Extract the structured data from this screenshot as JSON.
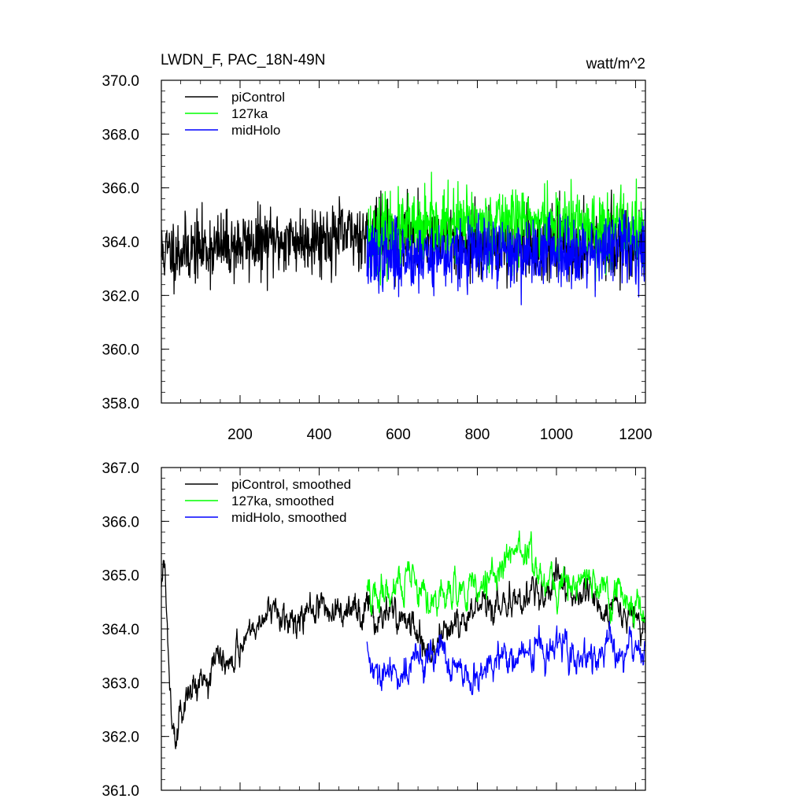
{
  "chart_data": [
    {
      "type": "line",
      "title": "LWDN_F, PAC_18N-49N",
      "units": "watt/m^2",
      "xlabel": "",
      "ylabel": "",
      "xlim": [
        1,
        1225
      ],
      "ylim": [
        358.0,
        370.0
      ],
      "xticks": [
        200,
        400,
        600,
        800,
        1000,
        1200
      ],
      "xtick_labels": [
        "200",
        "400",
        "600",
        "800",
        "1000",
        "1200"
      ],
      "yticks": [
        358.0,
        360.0,
        362.0,
        364.0,
        366.0,
        368.0,
        370.0
      ],
      "ytick_labels": [
        "358.0",
        "360.0",
        "362.0",
        "364.0",
        "366.0",
        "368.0",
        "370.0"
      ],
      "legend_position": "top-left",
      "series": [
        {
          "name": "piControl",
          "color": "#000000",
          "x_start": 1,
          "x_end": 1225,
          "base": 363.9,
          "noise": 1.05,
          "seed": 11,
          "trend": [
            [
              1,
              363.6
            ],
            [
              300,
              364.0
            ],
            [
              520,
              364.3
            ],
            [
              900,
              363.9
            ],
            [
              1225,
              364.0
            ]
          ]
        },
        {
          "name": "127ka",
          "color": "#00ff00",
          "x_start": 521,
          "x_end": 1225,
          "base": 364.4,
          "noise": 1.15,
          "seed": 23,
          "trend": [
            [
              521,
              364.2
            ],
            [
              900,
              364.8
            ],
            [
              1225,
              364.4
            ]
          ]
        },
        {
          "name": "midHolo",
          "color": "#0000ff",
          "x_start": 521,
          "x_end": 1225,
          "base": 363.6,
          "noise": 1.05,
          "seed": 37,
          "trend": [
            [
              521,
              363.4
            ],
            [
              900,
              363.6
            ],
            [
              1225,
              363.8
            ]
          ]
        }
      ]
    },
    {
      "type": "line",
      "title": "",
      "xlabel": "",
      "ylabel": "",
      "xlim": [
        1,
        1225
      ],
      "ylim": [
        361.0,
        367.0
      ],
      "xticks": [
        200,
        400,
        600,
        800,
        1000,
        1200
      ],
      "xtick_labels": [],
      "yticks": [
        361.0,
        362.0,
        363.0,
        364.0,
        365.0,
        366.0,
        367.0
      ],
      "ytick_labels": [
        "361.0",
        "362.0",
        "363.0",
        "364.0",
        "365.0",
        "366.0",
        "367.0"
      ],
      "legend_position": "top-left",
      "series": [
        {
          "name": "piControl, smoothed",
          "color": "#000000",
          "x_start": 1,
          "x_end": 1225,
          "base": 364.0,
          "noise": 0.42,
          "seed": 5,
          "trend": [
            [
              1,
              364.8
            ],
            [
              10,
              365.1
            ],
            [
              25,
              362.6
            ],
            [
              40,
              362.3
            ],
            [
              100,
              363.2
            ],
            [
              160,
              363.4
            ],
            [
              250,
              364.2
            ],
            [
              400,
              364.3
            ],
            [
              520,
              364.4
            ],
            [
              600,
              364.3
            ],
            [
              680,
              363.6
            ],
            [
              760,
              364.1
            ],
            [
              850,
              364.4
            ],
            [
              1000,
              364.8
            ],
            [
              1100,
              364.5
            ],
            [
              1225,
              364.1
            ]
          ]
        },
        {
          "name": "127ka, smoothed",
          "color": "#00ff00",
          "x_start": 521,
          "x_end": 1225,
          "base": 364.6,
          "noise": 0.45,
          "seed": 19,
          "trend": [
            [
              521,
              364.6
            ],
            [
              600,
              364.9
            ],
            [
              700,
              364.5
            ],
            [
              800,
              364.8
            ],
            [
              920,
              365.5
            ],
            [
              1000,
              364.8
            ],
            [
              1100,
              364.9
            ],
            [
              1225,
              364.3
            ]
          ]
        },
        {
          "name": "midHolo, smoothed",
          "color": "#0000ff",
          "x_start": 521,
          "x_end": 1225,
          "base": 363.4,
          "noise": 0.42,
          "seed": 29,
          "trend": [
            [
              521,
              363.6
            ],
            [
              540,
              363.0
            ],
            [
              600,
              363.2
            ],
            [
              700,
              363.6
            ],
            [
              780,
              362.9
            ],
            [
              850,
              363.4
            ],
            [
              950,
              363.6
            ],
            [
              1100,
              363.5
            ],
            [
              1225,
              363.6
            ]
          ]
        }
      ]
    }
  ]
}
